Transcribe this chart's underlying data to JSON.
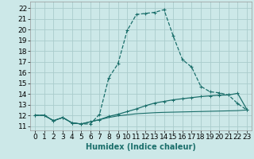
{
  "xlabel": "Humidex (Indice chaleur)",
  "bg_color": "#cce8e8",
  "grid_color": "#aacccc",
  "line_color": "#1a6e6a",
  "xlim": [
    -0.5,
    23.5
  ],
  "ylim": [
    10.6,
    22.6
  ],
  "xticks": [
    0,
    1,
    2,
    3,
    4,
    5,
    6,
    7,
    8,
    9,
    10,
    11,
    12,
    13,
    14,
    15,
    16,
    17,
    18,
    19,
    20,
    21,
    22,
    23
  ],
  "yticks": [
    11,
    12,
    13,
    14,
    15,
    16,
    17,
    18,
    19,
    20,
    21,
    22
  ],
  "series1_x": [
    0,
    1,
    2,
    3,
    4,
    5,
    6,
    7,
    8,
    9,
    10,
    11,
    12,
    13,
    14,
    15,
    16,
    17,
    18,
    19,
    20,
    21,
    22,
    23
  ],
  "series1_y": [
    12.0,
    12.0,
    11.5,
    11.8,
    11.3,
    11.2,
    11.2,
    12.1,
    15.5,
    16.8,
    19.9,
    21.4,
    21.5,
    21.6,
    21.85,
    19.4,
    17.2,
    16.5,
    14.7,
    14.2,
    14.1,
    13.9,
    13.1,
    12.5
  ],
  "series2_x": [
    0,
    1,
    2,
    3,
    4,
    5,
    6,
    7,
    8,
    9,
    10,
    11,
    12,
    13,
    14,
    15,
    16,
    17,
    18,
    19,
    20,
    21,
    22,
    23
  ],
  "series2_y": [
    12.0,
    12.0,
    11.5,
    11.8,
    11.3,
    11.2,
    11.4,
    11.6,
    11.9,
    12.1,
    12.35,
    12.6,
    12.9,
    13.15,
    13.3,
    13.45,
    13.55,
    13.65,
    13.75,
    13.82,
    13.88,
    13.9,
    14.05,
    12.55
  ],
  "series3_x": [
    0,
    1,
    2,
    3,
    4,
    5,
    6,
    7,
    8,
    9,
    10,
    11,
    12,
    13,
    14,
    15,
    16,
    17,
    18,
    19,
    20,
    21,
    22,
    23
  ],
  "series3_y": [
    12.0,
    12.0,
    11.5,
    11.8,
    11.3,
    11.2,
    11.4,
    11.6,
    11.8,
    11.95,
    12.05,
    12.15,
    12.2,
    12.25,
    12.28,
    12.3,
    12.32,
    12.34,
    12.36,
    12.38,
    12.4,
    12.42,
    12.44,
    12.5
  ],
  "font_size": 6.5
}
